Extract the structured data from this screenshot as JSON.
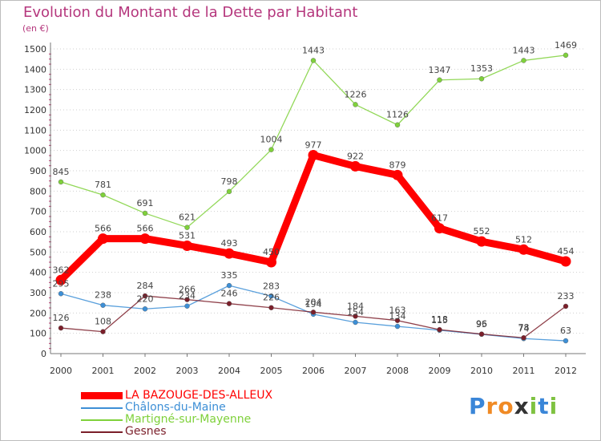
{
  "chart_data": {
    "type": "line",
    "title": "Evolution du Montant de la Dette par Habitant",
    "subtitle": "(en €)",
    "xlabel": "",
    "ylabel": "",
    "x": [
      "2000",
      "2001",
      "2002",
      "2003",
      "2004",
      "2005",
      "2006",
      "2007",
      "2008",
      "2009",
      "2010",
      "2011",
      "2012"
    ],
    "ylim": [
      0,
      1500
    ],
    "yticks": [
      0,
      100,
      200,
      300,
      400,
      500,
      600,
      700,
      800,
      900,
      1000,
      1100,
      1200,
      1300,
      1400,
      1500
    ],
    "grid": "dotted horizontal",
    "legend_position": "bottom-left",
    "series": [
      {
        "name": "LA BAZOUGE-DES-ALLEUX",
        "color": "#ff0000",
        "values": [
          362,
          566,
          566,
          531,
          493,
          450,
          977,
          922,
          879,
          617,
          552,
          512,
          454
        ]
      },
      {
        "name": "Châlons-du-Maine",
        "color": "#3d8fd6",
        "values": [
          295,
          238,
          220,
          234,
          335,
          283,
          194,
          154,
          134,
          115,
          95,
          74,
          63
        ]
      },
      {
        "name": "Martigné-sur-Mayenne",
        "color": "#7fd13b",
        "values": [
          845,
          781,
          691,
          621,
          798,
          1004,
          1443,
          1226,
          1126,
          1347,
          1353,
          1443,
          1469
        ]
      },
      {
        "name": "Gesnes",
        "color": "#7b1f2a",
        "values": [
          126,
          108,
          284,
          266,
          246,
          226,
          204,
          184,
          163,
          118,
          96,
          78,
          233
        ]
      }
    ]
  },
  "logo": {
    "letters": [
      "P",
      "r",
      "o",
      "x",
      "i",
      "t",
      "i"
    ],
    "colors": [
      "#3a86d8",
      "#f08a24",
      "#f08a24",
      "#333333",
      "#7fc241",
      "#3a86d8",
      "#7fc241"
    ]
  }
}
